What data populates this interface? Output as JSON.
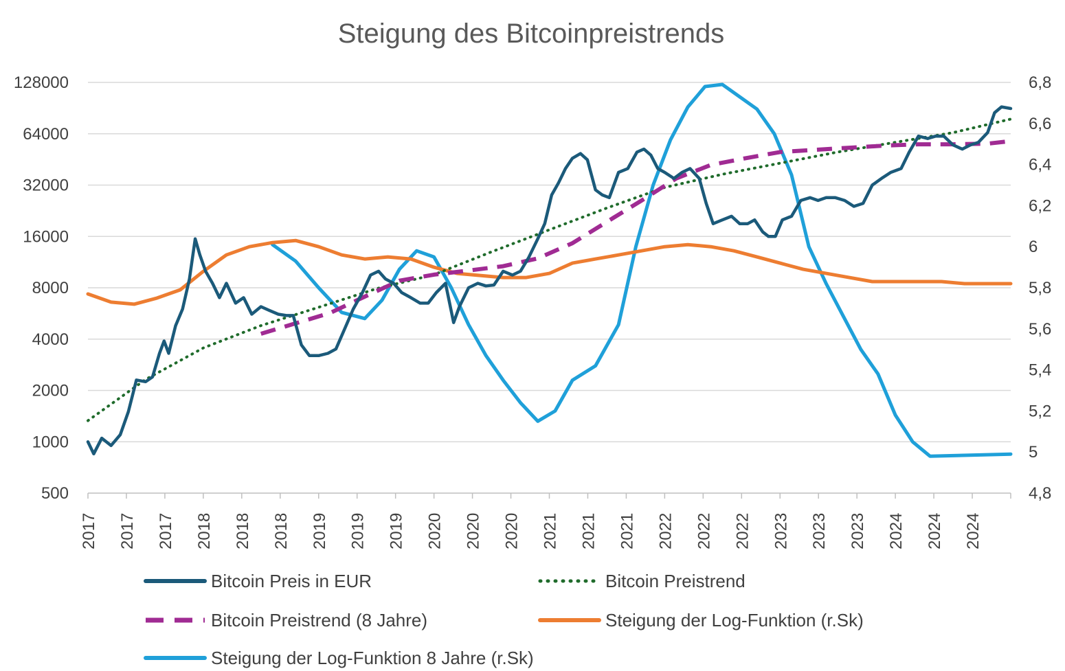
{
  "chart_data": {
    "type": "line",
    "title": "Steigung des Bitcoinpreistrends",
    "y_left": {
      "scale": "log2",
      "ticks": [
        "500",
        "1000",
        "2000",
        "4000",
        "8000",
        "16000",
        "32000",
        "64000",
        "128000"
      ],
      "tick_values": [
        500,
        1000,
        2000,
        4000,
        8000,
        16000,
        32000,
        64000,
        128000
      ],
      "range": [
        500,
        128000
      ]
    },
    "y_right": {
      "ticks": [
        "4,8",
        "5",
        "5,2",
        "5,4",
        "5,6",
        "5,8",
        "6",
        "6,2",
        "6,4",
        "6,6",
        "6,8"
      ],
      "tick_values": [
        4.8,
        5.0,
        5.2,
        5.4,
        5.6,
        5.8,
        6.0,
        6.2,
        6.4,
        6.6,
        6.8
      ],
      "range": [
        4.8,
        6.8
      ]
    },
    "x": {
      "ticks": [
        "2017",
        "2017",
        "2017",
        "2018",
        "2018",
        "2018",
        "2019",
        "2019",
        "2019",
        "2020",
        "2020",
        "2020",
        "2021",
        "2021",
        "2021",
        "2022",
        "2022",
        "2022",
        "2023",
        "2023",
        "2023",
        "2024",
        "2024",
        "2024"
      ],
      "range": [
        2017.0,
        2025.0
      ]
    },
    "grid": "horizontal",
    "legend_position": "bottom",
    "series": [
      {
        "name": "Bitcoin Preis in EUR",
        "axis": "left",
        "color": "#1b5a7a",
        "style": "solid",
        "points": [
          [
            2017.0,
            1000
          ],
          [
            2017.05,
            850
          ],
          [
            2017.12,
            1050
          ],
          [
            2017.2,
            950
          ],
          [
            2017.28,
            1100
          ],
          [
            2017.35,
            1500
          ],
          [
            2017.42,
            2300
          ],
          [
            2017.5,
            2250
          ],
          [
            2017.56,
            2400
          ],
          [
            2017.62,
            3300
          ],
          [
            2017.66,
            3900
          ],
          [
            2017.7,
            3300
          ],
          [
            2017.76,
            4800
          ],
          [
            2017.82,
            6000
          ],
          [
            2017.88,
            9000
          ],
          [
            2017.93,
            15500
          ],
          [
            2017.97,
            12500
          ],
          [
            2018.02,
            10000
          ],
          [
            2018.08,
            8500
          ],
          [
            2018.14,
            7000
          ],
          [
            2018.2,
            8500
          ],
          [
            2018.28,
            6500
          ],
          [
            2018.35,
            7000
          ],
          [
            2018.42,
            5600
          ],
          [
            2018.5,
            6200
          ],
          [
            2018.57,
            5900
          ],
          [
            2018.65,
            5600
          ],
          [
            2018.72,
            5500
          ],
          [
            2018.78,
            5500
          ],
          [
            2018.85,
            3700
          ],
          [
            2018.92,
            3200
          ],
          [
            2019.0,
            3200
          ],
          [
            2019.08,
            3300
          ],
          [
            2019.15,
            3500
          ],
          [
            2019.22,
            4500
          ],
          [
            2019.3,
            6000
          ],
          [
            2019.38,
            7500
          ],
          [
            2019.45,
            9500
          ],
          [
            2019.52,
            10000
          ],
          [
            2019.58,
            9000
          ],
          [
            2019.65,
            8500
          ],
          [
            2019.72,
            7500
          ],
          [
            2019.8,
            7000
          ],
          [
            2019.88,
            6500
          ],
          [
            2019.95,
            6500
          ],
          [
            2020.02,
            7500
          ],
          [
            2020.1,
            8500
          ],
          [
            2020.17,
            5000
          ],
          [
            2020.22,
            6200
          ],
          [
            2020.3,
            8000
          ],
          [
            2020.38,
            8500
          ],
          [
            2020.45,
            8200
          ],
          [
            2020.52,
            8300
          ],
          [
            2020.6,
            10000
          ],
          [
            2020.68,
            9500
          ],
          [
            2020.75,
            10000
          ],
          [
            2020.82,
            12000
          ],
          [
            2020.9,
            15500
          ],
          [
            2020.96,
            19000
          ],
          [
            2021.02,
            28000
          ],
          [
            2021.08,
            33000
          ],
          [
            2021.14,
            40000
          ],
          [
            2021.2,
            46000
          ],
          [
            2021.27,
            49000
          ],
          [
            2021.33,
            45000
          ],
          [
            2021.4,
            30000
          ],
          [
            2021.46,
            28000
          ],
          [
            2021.52,
            27000
          ],
          [
            2021.6,
            38000
          ],
          [
            2021.68,
            40000
          ],
          [
            2021.76,
            50000
          ],
          [
            2021.82,
            52000
          ],
          [
            2021.88,
            48000
          ],
          [
            2021.94,
            40000
          ],
          [
            2022.0,
            38000
          ],
          [
            2022.08,
            35000
          ],
          [
            2022.15,
            38000
          ],
          [
            2022.22,
            40000
          ],
          [
            2022.3,
            35000
          ],
          [
            2022.36,
            25000
          ],
          [
            2022.42,
            19000
          ],
          [
            2022.5,
            20000
          ],
          [
            2022.58,
            21000
          ],
          [
            2022.65,
            19000
          ],
          [
            2022.72,
            19000
          ],
          [
            2022.78,
            20000
          ],
          [
            2022.85,
            17000
          ],
          [
            2022.9,
            16000
          ],
          [
            2022.96,
            16000
          ],
          [
            2023.02,
            20000
          ],
          [
            2023.1,
            21000
          ],
          [
            2023.18,
            26000
          ],
          [
            2023.26,
            27000
          ],
          [
            2023.33,
            26000
          ],
          [
            2023.4,
            27000
          ],
          [
            2023.48,
            27000
          ],
          [
            2023.56,
            26000
          ],
          [
            2023.64,
            24000
          ],
          [
            2023.72,
            25000
          ],
          [
            2023.8,
            32000
          ],
          [
            2023.88,
            35000
          ],
          [
            2023.96,
            38000
          ],
          [
            2024.05,
            40000
          ],
          [
            2024.12,
            50000
          ],
          [
            2024.2,
            62000
          ],
          [
            2024.28,
            60000
          ],
          [
            2024.35,
            62000
          ],
          [
            2024.42,
            62000
          ],
          [
            2024.5,
            55000
          ],
          [
            2024.58,
            52000
          ],
          [
            2024.65,
            55000
          ],
          [
            2024.72,
            57000
          ],
          [
            2024.8,
            65000
          ],
          [
            2024.86,
            85000
          ],
          [
            2024.92,
            92000
          ],
          [
            2025.0,
            90000
          ]
        ]
      },
      {
        "name": "Bitcoin Preistrend",
        "axis": "left",
        "color": "#1f6b2b",
        "style": "dotted",
        "points": [
          [
            2017.0,
            1330
          ],
          [
            2017.5,
            2320
          ],
          [
            2018.0,
            3550
          ],
          [
            2018.5,
            4800
          ],
          [
            2019.0,
            6150
          ],
          [
            2019.5,
            7900
          ],
          [
            2020.0,
            9550
          ],
          [
            2020.5,
            13000
          ],
          [
            2021.0,
            17500
          ],
          [
            2021.5,
            23500
          ],
          [
            2022.0,
            31000
          ],
          [
            2022.5,
            37000
          ],
          [
            2023.0,
            43000
          ],
          [
            2023.5,
            50000
          ],
          [
            2024.0,
            57000
          ],
          [
            2024.5,
            65000
          ],
          [
            2025.0,
            78000
          ]
        ]
      },
      {
        "name": "Bitcoin Preistrend (8 Jahre)",
        "axis": "left",
        "color": "#a02b93",
        "style": "dashed",
        "points": [
          [
            2018.5,
            4300
          ],
          [
            2018.8,
            4950
          ],
          [
            2019.1,
            5700
          ],
          [
            2019.4,
            7100
          ],
          [
            2019.7,
            8800
          ],
          [
            2020.0,
            9550
          ],
          [
            2020.3,
            10100
          ],
          [
            2020.6,
            10700
          ],
          [
            2020.9,
            11900
          ],
          [
            2021.2,
            14600
          ],
          [
            2021.5,
            19500
          ],
          [
            2021.8,
            26000
          ],
          [
            2022.1,
            35000
          ],
          [
            2022.4,
            42000
          ],
          [
            2022.7,
            46000
          ],
          [
            2023.0,
            50000
          ],
          [
            2023.3,
            51500
          ],
          [
            2023.6,
            53000
          ],
          [
            2023.9,
            54500
          ],
          [
            2024.2,
            55500
          ],
          [
            2024.5,
            55500
          ],
          [
            2024.8,
            56000
          ],
          [
            2025.0,
            58000
          ]
        ]
      },
      {
        "name": "Steigung der Log-Funktion (r.Sk)",
        "axis": "right",
        "color": "#ed7d31",
        "style": "solid",
        "points": [
          [
            2017.0,
            5.77
          ],
          [
            2017.2,
            5.73
          ],
          [
            2017.4,
            5.72
          ],
          [
            2017.6,
            5.75
          ],
          [
            2017.8,
            5.79
          ],
          [
            2018.0,
            5.88
          ],
          [
            2018.2,
            5.96
          ],
          [
            2018.4,
            6.0
          ],
          [
            2018.6,
            6.02
          ],
          [
            2018.8,
            6.03
          ],
          [
            2019.0,
            6.0
          ],
          [
            2019.2,
            5.96
          ],
          [
            2019.4,
            5.94
          ],
          [
            2019.6,
            5.95
          ],
          [
            2019.8,
            5.94
          ],
          [
            2020.0,
            5.9
          ],
          [
            2020.2,
            5.87
          ],
          [
            2020.4,
            5.86
          ],
          [
            2020.6,
            5.85
          ],
          [
            2020.8,
            5.85
          ],
          [
            2021.0,
            5.87
          ],
          [
            2021.2,
            5.92
          ],
          [
            2021.4,
            5.94
          ],
          [
            2021.6,
            5.96
          ],
          [
            2021.8,
            5.98
          ],
          [
            2022.0,
            6.0
          ],
          [
            2022.2,
            6.01
          ],
          [
            2022.4,
            6.0
          ],
          [
            2022.6,
            5.98
          ],
          [
            2022.8,
            5.95
          ],
          [
            2023.0,
            5.92
          ],
          [
            2023.2,
            5.89
          ],
          [
            2023.4,
            5.87
          ],
          [
            2023.6,
            5.85
          ],
          [
            2023.8,
            5.83
          ],
          [
            2024.0,
            5.83
          ],
          [
            2024.2,
            5.83
          ],
          [
            2024.4,
            5.83
          ],
          [
            2024.6,
            5.82
          ],
          [
            2024.8,
            5.82
          ],
          [
            2025.0,
            5.82
          ]
        ]
      },
      {
        "name": "Steigung der Log-Funktion 8 Jahre (r.Sk)",
        "axis": "right",
        "color": "#1fa0d9",
        "style": "solid",
        "points": [
          [
            2018.6,
            6.01
          ],
          [
            2018.8,
            5.93
          ],
          [
            2019.0,
            5.8
          ],
          [
            2019.2,
            5.68
          ],
          [
            2019.4,
            5.65
          ],
          [
            2019.55,
            5.74
          ],
          [
            2019.7,
            5.89
          ],
          [
            2019.85,
            5.98
          ],
          [
            2020.0,
            5.95
          ],
          [
            2020.15,
            5.8
          ],
          [
            2020.3,
            5.62
          ],
          [
            2020.45,
            5.47
          ],
          [
            2020.6,
            5.35
          ],
          [
            2020.75,
            5.24
          ],
          [
            2020.9,
            5.15
          ],
          [
            2021.05,
            5.2
          ],
          [
            2021.2,
            5.35
          ],
          [
            2021.4,
            5.42
          ],
          [
            2021.6,
            5.62
          ],
          [
            2021.75,
            6.0
          ],
          [
            2021.9,
            6.3
          ],
          [
            2022.05,
            6.52
          ],
          [
            2022.2,
            6.68
          ],
          [
            2022.35,
            6.78
          ],
          [
            2022.5,
            6.79
          ],
          [
            2022.65,
            6.73
          ],
          [
            2022.8,
            6.67
          ],
          [
            2022.95,
            6.55
          ],
          [
            2023.1,
            6.35
          ],
          [
            2023.25,
            6.0
          ],
          [
            2023.4,
            5.82
          ],
          [
            2023.55,
            5.66
          ],
          [
            2023.7,
            5.5
          ],
          [
            2023.85,
            5.38
          ],
          [
            2024.0,
            5.18
          ],
          [
            2024.15,
            5.05
          ],
          [
            2024.3,
            4.98
          ],
          [
            2025.0,
            4.99
          ]
        ]
      }
    ]
  }
}
